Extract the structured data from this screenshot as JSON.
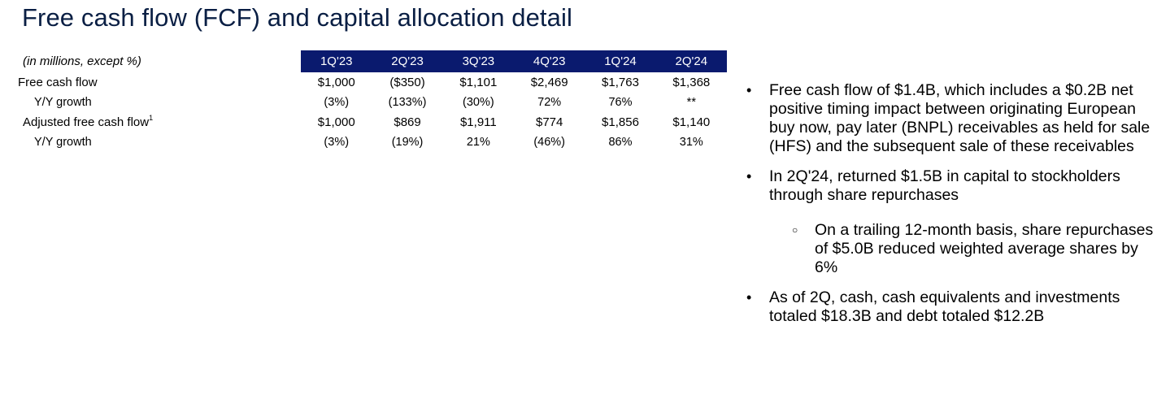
{
  "title": "Free cash flow (FCF) and capital allocation detail",
  "table": {
    "units_label": "(in millions, except %)",
    "quarters": [
      "1Q'23",
      "2Q'23",
      "3Q'23",
      "4Q'23",
      "1Q'24",
      "2Q'24"
    ],
    "rows": [
      {
        "label": "Free cash flow",
        "footnote": "",
        "values": [
          "$1,000",
          "($350)",
          "$1,101",
          "$2,469",
          "$1,763",
          "$1,368"
        ]
      },
      {
        "label": "Y/Y growth",
        "footnote": "",
        "values": [
          "(3%)",
          "(133%)",
          "(30%)",
          "72%",
          "76%",
          "**"
        ]
      },
      {
        "label": "Adjusted free cash flow",
        "footnote": "1",
        "values": [
          "$1,000",
          "$869",
          "$1,911",
          "$774",
          "$1,856",
          "$1,140"
        ]
      },
      {
        "label": "Y/Y growth",
        "footnote": "",
        "values": [
          "(3%)",
          "(19%)",
          "21%",
          "(46%)",
          "86%",
          "31%"
        ]
      }
    ]
  },
  "bullets": [
    {
      "marker": "•",
      "text": "Free cash flow of $1.4B, which includes a $0.2B net positive timing impact between originating European buy now, pay later (BNPL) receivables as held for sale (HFS) and the subsequent sale of these receivables"
    },
    {
      "marker": "•",
      "text": "In 2Q'24, returned $1.5B in capital to stockholders through share repurchases"
    },
    {
      "marker": "○",
      "text": "On a trailing 12-month basis, share repurchases of $5.0B reduced weighted average shares by 6%"
    },
    {
      "marker": "•",
      "text": "As of 2Q, cash, cash equivalents and investments totaled $18.3B and debt totaled $12.2B"
    }
  ],
  "colors": {
    "title": "#0a1f44",
    "header_fill": "#0a1a6e",
    "header_text": "#ffffff"
  }
}
